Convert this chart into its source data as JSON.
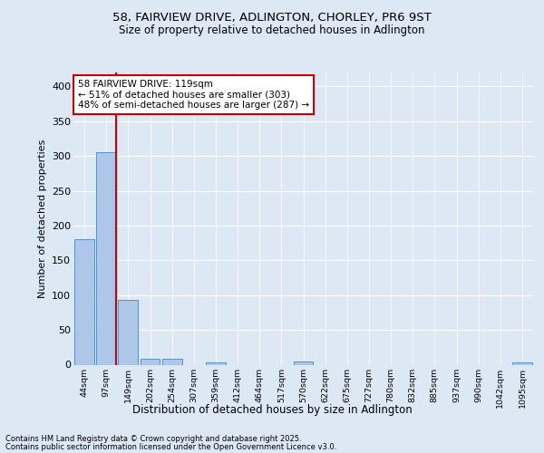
{
  "title_line1": "58, FAIRVIEW DRIVE, ADLINGTON, CHORLEY, PR6 9ST",
  "title_line2": "Size of property relative to detached houses in Adlington",
  "xlabel": "Distribution of detached houses by size in Adlington",
  "ylabel": "Number of detached properties",
  "categories": [
    "44sqm",
    "97sqm",
    "149sqm",
    "202sqm",
    "254sqm",
    "307sqm",
    "359sqm",
    "412sqm",
    "464sqm",
    "517sqm",
    "570sqm",
    "622sqm",
    "675sqm",
    "727sqm",
    "780sqm",
    "832sqm",
    "885sqm",
    "937sqm",
    "990sqm",
    "1042sqm",
    "1095sqm"
  ],
  "values": [
    180,
    305,
    93,
    8,
    9,
    0,
    3,
    0,
    0,
    0,
    4,
    0,
    0,
    0,
    0,
    0,
    0,
    0,
    0,
    0,
    3
  ],
  "bar_color": "#aec6e8",
  "bar_edge_color": "#5a8fc2",
  "vline_color": "#cc0000",
  "vline_x": 1.45,
  "annotation_text": "58 FAIRVIEW DRIVE: 119sqm\n← 51% of detached houses are smaller (303)\n48% of semi-detached houses are larger (287) →",
  "annotation_box_color": "#cc0000",
  "ylim": [
    0,
    420
  ],
  "yticks": [
    0,
    50,
    100,
    150,
    200,
    250,
    300,
    350,
    400
  ],
  "background_color": "#dce9f5",
  "plot_bg_color": "#dce9f5",
  "grid_color": "#ffffff",
  "footer_line1": "Contains HM Land Registry data © Crown copyright and database right 2025.",
  "footer_line2": "Contains public sector information licensed under the Open Government Licence v3.0."
}
